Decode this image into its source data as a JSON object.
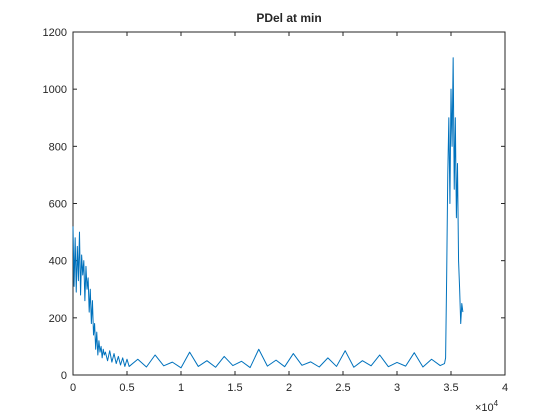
{
  "chart_data": {
    "type": "line",
    "title": "PDel at min",
    "x": [
      0,
      100,
      200,
      300,
      400,
      500,
      600,
      700,
      800,
      900,
      1000,
      1100,
      1200,
      1300,
      1400,
      1500,
      1600,
      1700,
      1800,
      1900,
      2000,
      2100,
      2200,
      2300,
      2400,
      2500,
      2600,
      2700,
      2800,
      2900,
      3000,
      3200,
      3400,
      3600,
      3800,
      4000,
      4200,
      4400,
      4600,
      4800,
      5000,
      5200,
      6000,
      6800,
      7600,
      8400,
      9200,
      10000,
      10800,
      11600,
      12400,
      13200,
      14000,
      14800,
      15600,
      16400,
      17200,
      18000,
      18800,
      19600,
      20400,
      21200,
      22000,
      22800,
      23600,
      24400,
      25200,
      26000,
      26800,
      27600,
      28400,
      29200,
      30000,
      30800,
      31600,
      32400,
      33200,
      34000,
      34400,
      34500,
      34600,
      34700,
      34800,
      34900,
      35000,
      35100,
      35200,
      35300,
      35400,
      35500,
      35600,
      35700,
      35800,
      35900,
      36000,
      36100
    ],
    "series": [
      {
        "name": "PDel",
        "color": "#0072bd",
        "values": [
          520,
          310,
          480,
          290,
          450,
          330,
          500,
          280,
          420,
          350,
          400,
          260,
          380,
          300,
          340,
          220,
          300,
          180,
          260,
          140,
          180,
          90,
          150,
          70,
          120,
          80,
          100,
          60,
          90,
          70,
          80,
          50,
          85,
          45,
          75,
          40,
          65,
          35,
          60,
          30,
          55,
          30,
          55,
          28,
          70,
          32,
          45,
          25,
          80,
          30,
          50,
          27,
          65,
          33,
          48,
          26,
          90,
          31,
          52,
          29,
          75,
          34,
          46,
          28,
          60,
          30,
          85,
          27,
          50,
          32,
          70,
          29,
          44,
          31,
          78,
          28,
          55,
          33,
          40,
          60,
          350,
          700,
          900,
          600,
          1000,
          800,
          1110,
          650,
          900,
          550,
          740,
          400,
          300,
          180,
          250,
          220
        ]
      }
    ],
    "xlim": [
      0,
      40000
    ],
    "xticks": [
      0,
      {
        "value": 5000,
        "label": "0.5"
      },
      {
        "value": 10000,
        "label": "1"
      },
      {
        "value": 15000,
        "label": "1.5"
      },
      {
        "value": 20000,
        "label": "2"
      },
      {
        "value": 25000,
        "label": "2.5"
      },
      {
        "value": 30000,
        "label": "3"
      },
      {
        "value": 35000,
        "label": "3.5"
      },
      {
        "value": 40000,
        "label": "4"
      }
    ],
    "x_exponent": {
      "base": "×10",
      "power": "4"
    },
    "ylim": [
      0,
      1200
    ],
    "yticks": [
      0,
      200,
      400,
      600,
      800,
      1000,
      1200
    ],
    "grid": false
  }
}
